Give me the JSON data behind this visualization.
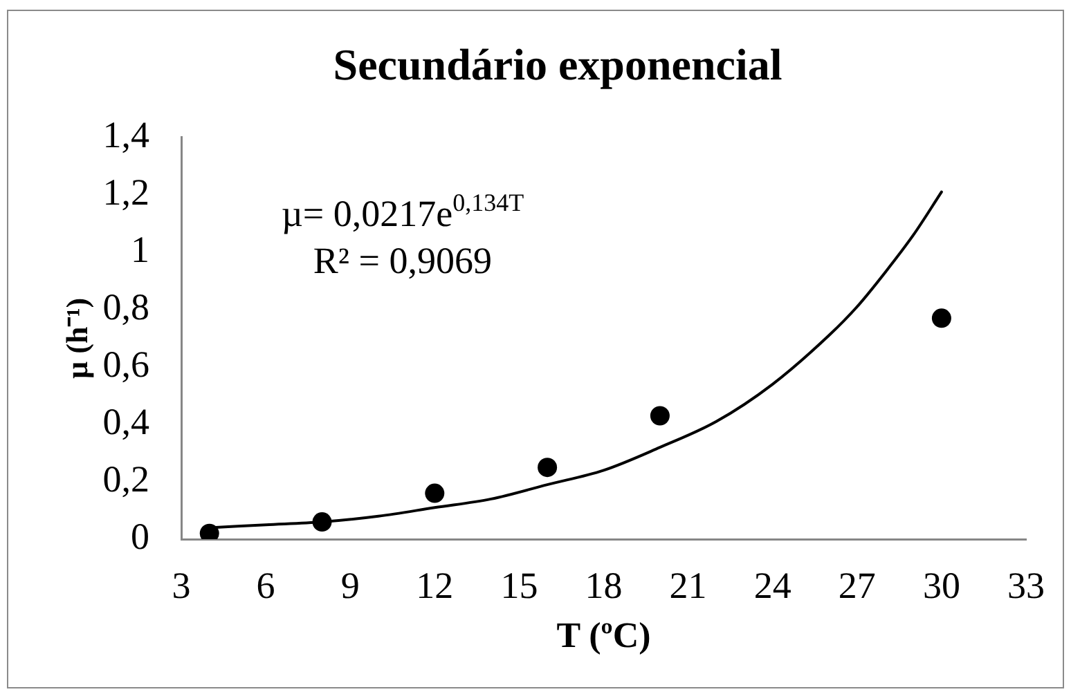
{
  "chart_data": {
    "type": "scatter",
    "title": "Secundário exponencial",
    "xlabel": "T (ºC)",
    "ylabel": "µ (h⁻¹)",
    "annotations": [
      "µ= 0,0217e$^{0,134T}$",
      "R² = 0,9069"
    ],
    "series": [
      {
        "color": "#000000",
        "marker": "circle",
        "x": [
          4,
          8,
          12,
          16,
          20,
          30
        ],
        "values": [
          0.02,
          0.06,
          0.16,
          0.25,
          0.43,
          0.77
        ]
      },
      {
        "type": "line",
        "color": "#000000",
        "x": [
          4,
          6,
          8,
          10,
          12,
          14,
          16,
          18,
          20,
          22,
          24,
          26,
          27,
          28,
          29,
          30
        ],
        "values": [
          0.04,
          0.05,
          0.06,
          0.08,
          0.11,
          0.14,
          0.19,
          0.24,
          0.32,
          0.41,
          0.54,
          0.71,
          0.81,
          0.93,
          1.06,
          1.21
        ]
      }
    ],
    "xlim": [
      3,
      33
    ],
    "xticks": [
      3,
      6,
      9,
      12,
      15,
      18,
      21,
      24,
      27,
      30,
      33
    ],
    "ylim": [
      0,
      1.4
    ],
    "yticks": [
      0,
      {
        "value": 0.2,
        "label": "0,2"
      },
      {
        "value": 0.4,
        "label": "0,4"
      },
      {
        "value": 0.6,
        "label": "0,6"
      },
      {
        "value": 0.8,
        "label": "0,8"
      },
      1,
      {
        "value": 1.2,
        "label": "1,2"
      },
      {
        "value": 1.4,
        "label": "1,4"
      }
    ]
  }
}
